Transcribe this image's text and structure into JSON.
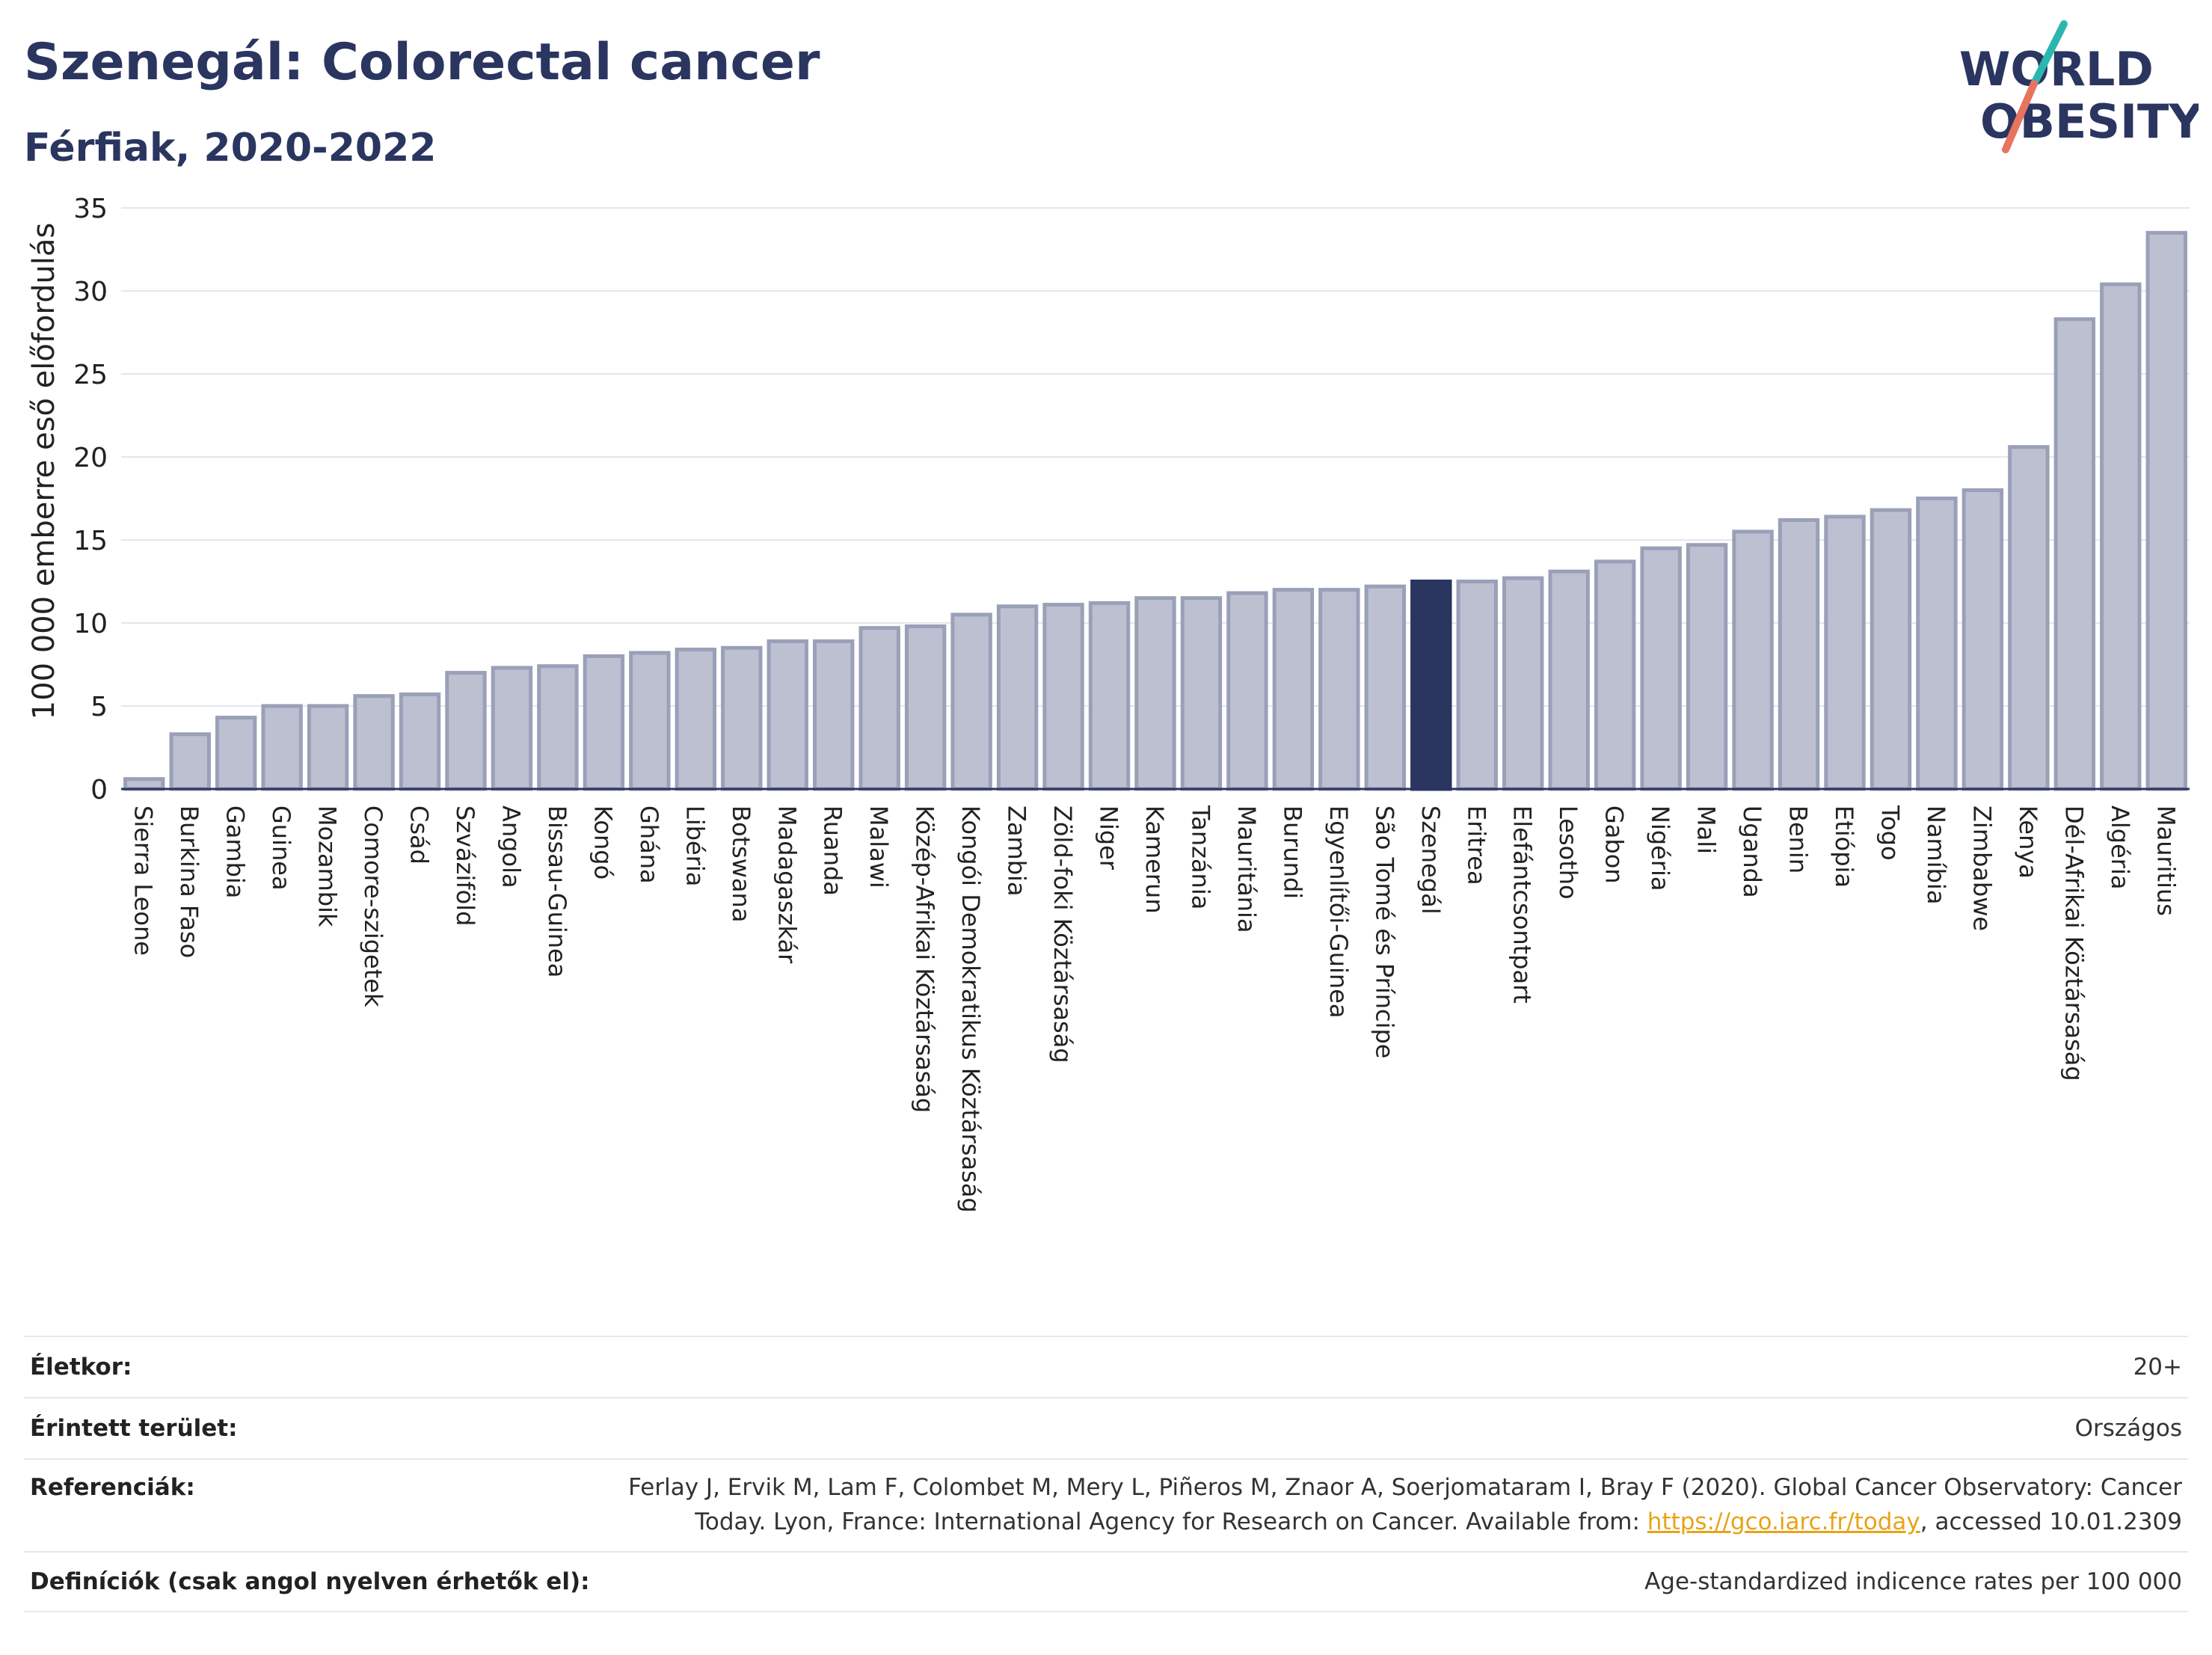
{
  "header": {
    "title": "Szenegál: Colorectal cancer",
    "subtitle": "Férfiak, 2020-2022"
  },
  "logo": {
    "line1": "WORLD",
    "line2": "OBESITY",
    "colors": {
      "text": "#2a3560",
      "teal": "#2ab7b0",
      "coral": "#e8735f"
    }
  },
  "colors": {
    "bar_fill": "#bcc0d0",
    "bar_stroke": "#9aa0b8",
    "highlight": "#2a3560",
    "grid": "#e4e6ec",
    "axis": "#2a3560"
  },
  "chart_data": {
    "type": "bar",
    "title": "Szenegál: Colorectal cancer",
    "subtitle": "Férfiak, 2020-2022",
    "ylabel": "100 000 emberre eső előfordulás",
    "xlabel": "",
    "ylim": [
      0,
      35
    ],
    "yticks": [
      0,
      5,
      10,
      15,
      20,
      25,
      30,
      35
    ],
    "grid": true,
    "highlight": "Szenegál",
    "categories": [
      "Sierra Leone",
      "Burkina Faso",
      "Gambia",
      "Guinea",
      "Mozambik",
      "Comore-szigetek",
      "Csád",
      "Szváziföld",
      "Angola",
      "Bissau-Guinea",
      "Kongó",
      "Ghána",
      "Libéria",
      "Botswana",
      "Madagaszkár",
      "Ruanda",
      "Malawi",
      "Közép-Afrikai Köztársaság",
      "Kongói Demokratikus Köztársaság",
      "Zambia",
      "Zöld-foki Köztársaság",
      "Niger",
      "Kamerun",
      "Tanzánia",
      "Mauritánia",
      "Burundi",
      "Egyenlítői-Guinea",
      "São Tomé és Príncipe",
      "Szenegál",
      "Eritrea",
      "Elefántcsontpart",
      "Lesotho",
      "Gabon",
      "Nigéria",
      "Mali",
      "Uganda",
      "Benin",
      "Etiópia",
      "Togo",
      "Namíbia",
      "Zimbabwe",
      "Kenya",
      "Dél-Afrikai Köztársaság",
      "Algéria",
      "Mauritius"
    ],
    "values": [
      0.6,
      3.3,
      4.3,
      5.0,
      5.0,
      5.6,
      5.7,
      7.0,
      7.3,
      7.4,
      8.0,
      8.2,
      8.4,
      8.5,
      8.9,
      8.9,
      9.7,
      9.8,
      10.5,
      11.0,
      11.1,
      11.2,
      11.5,
      11.5,
      11.8,
      12.0,
      12.0,
      12.2,
      12.5,
      12.5,
      12.7,
      13.1,
      13.7,
      14.5,
      14.7,
      15.5,
      16.2,
      16.4,
      16.8,
      17.5,
      18.0,
      20.6,
      28.3,
      30.4,
      33.5
    ]
  },
  "meta": {
    "age_label": "Életkor:",
    "age_value": "20+",
    "area_label": "Érintett terület:",
    "area_value": "Országos",
    "ref_label": "Referenciák:",
    "ref_line1": "Ferlay J, Ervik M, Lam F, Colombet M, Mery L, Piñeros M, Znaor A, Soerjomataram I, Bray F (2020). Global Cancer Observatory: Cancer",
    "ref_line2_pre": "Today. Lyon, France: International Agency for Research on Cancer. Available from: ",
    "ref_link": "https://gco.iarc.fr/today",
    "ref_line2_post": ", accessed 10.01.2309",
    "def_label": "Definíciók (csak angol nyelven érhetők el):",
    "def_value": "Age-standardized indicence rates per 100 000"
  }
}
